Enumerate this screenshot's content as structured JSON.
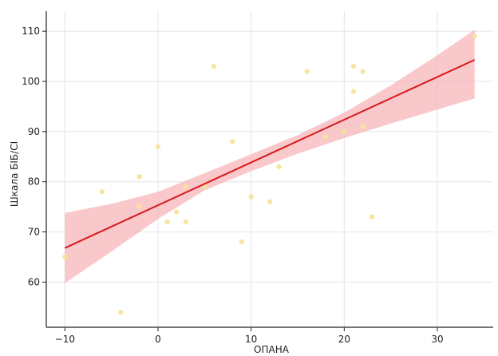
{
  "chart_data": {
    "type": "scatter",
    "title": "",
    "xlabel": "ОПАНА",
    "ylabel": "Шкала БІБ/СІ",
    "xlim": [
      -12,
      36
    ],
    "ylim": [
      51,
      114
    ],
    "xticks": [
      -10,
      0,
      10,
      20,
      30
    ],
    "yticks": [
      60,
      70,
      80,
      90,
      100,
      110
    ],
    "xtick_labels": [
      "−10",
      "0",
      "10",
      "20",
      "30"
    ],
    "ytick_labels": [
      "60",
      "70",
      "80",
      "90",
      "100",
      "110"
    ],
    "grid": true,
    "points": [
      {
        "x": -10,
        "y": 65
      },
      {
        "x": -6,
        "y": 78
      },
      {
        "x": -4,
        "y": 54
      },
      {
        "x": -2,
        "y": 75
      },
      {
        "x": -2,
        "y": 81
      },
      {
        "x": 0,
        "y": 87
      },
      {
        "x": 1,
        "y": 72
      },
      {
        "x": 2,
        "y": 74
      },
      {
        "x": 3,
        "y": 72
      },
      {
        "x": 3,
        "y": 79
      },
      {
        "x": 5,
        "y": 79
      },
      {
        "x": 6,
        "y": 103
      },
      {
        "x": 8,
        "y": 88
      },
      {
        "x": 9,
        "y": 68
      },
      {
        "x": 10,
        "y": 77
      },
      {
        "x": 12,
        "y": 76
      },
      {
        "x": 13,
        "y": 83
      },
      {
        "x": 16,
        "y": 102
      },
      {
        "x": 18,
        "y": 89
      },
      {
        "x": 20,
        "y": 90
      },
      {
        "x": 21,
        "y": 103
      },
      {
        "x": 21,
        "y": 98
      },
      {
        "x": 22,
        "y": 91
      },
      {
        "x": 22,
        "y": 102
      },
      {
        "x": 23,
        "y": 73
      },
      {
        "x": 34,
        "y": 109
      }
    ],
    "regression": {
      "x": [
        -10,
        34
      ],
      "y": [
        66.8,
        104.3
      ]
    },
    "confidence_band": {
      "x": [
        -10,
        -5,
        0,
        5,
        10,
        15,
        20,
        25,
        30,
        34
      ],
      "lower": [
        59.8,
        66.1,
        72.6,
        78.3,
        82.1,
        85.6,
        88.7,
        91.6,
        94.4,
        96.6
      ],
      "upper": [
        73.8,
        75.6,
        78.0,
        81.7,
        85.5,
        89.3,
        93.8,
        99.2,
        105.2,
        110.3
      ]
    },
    "colors": {
      "points": "#f5e39a",
      "line": "#d7191c",
      "band": "#f7b6ba"
    }
  }
}
